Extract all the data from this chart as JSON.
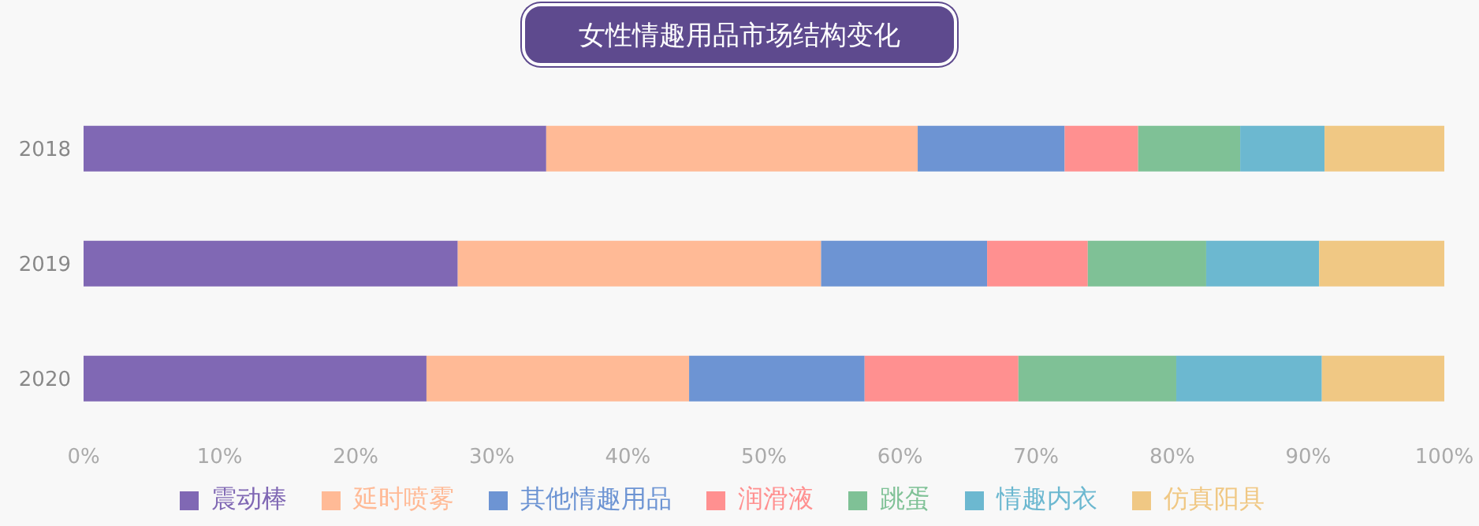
{
  "chart_data": {
    "type": "bar",
    "title": "女性情趣用品市场结构变化",
    "orientation": "horizontal",
    "stacked": true,
    "categories": [
      "2018",
      "2019",
      "2020"
    ],
    "series": [
      {
        "name": "震动棒",
        "color": "#8068b4",
        "values": [
          34.0,
          27.5,
          25.2
        ]
      },
      {
        "name": "延时喷雾",
        "color": "#ffba96",
        "values": [
          27.3,
          26.7,
          19.3
        ]
      },
      {
        "name": "其他情趣用品",
        "color": "#6d94d3",
        "values": [
          10.8,
          12.2,
          12.9
        ]
      },
      {
        "name": "润滑液",
        "color": "#ff9090",
        "values": [
          5.4,
          7.4,
          11.3
        ]
      },
      {
        "name": "跳蛋",
        "color": "#7fc196",
        "values": [
          7.5,
          8.7,
          11.6
        ]
      },
      {
        "name": "情趣内衣",
        "color": "#6cb8d0",
        "values": [
          6.2,
          8.3,
          10.7
        ]
      },
      {
        "name": "仿真阳具",
        "color": "#f0c884",
        "values": [
          8.8,
          9.2,
          9.0
        ]
      }
    ],
    "xlim": [
      0,
      100
    ],
    "xticks": [
      {
        "value": 0,
        "label": "0%"
      },
      {
        "value": 10,
        "label": "10%"
      },
      {
        "value": 20,
        "label": "20%"
      },
      {
        "value": 30,
        "label": "30%"
      },
      {
        "value": 40,
        "label": "40%"
      },
      {
        "value": 50,
        "label": "50%"
      },
      {
        "value": 60,
        "label": "60%"
      },
      {
        "value": 70,
        "label": "70%"
      },
      {
        "value": 80,
        "label": "80%"
      },
      {
        "value": 90,
        "label": "90%"
      },
      {
        "value": 100,
        "label": "100%"
      }
    ],
    "legend": "bottom"
  }
}
